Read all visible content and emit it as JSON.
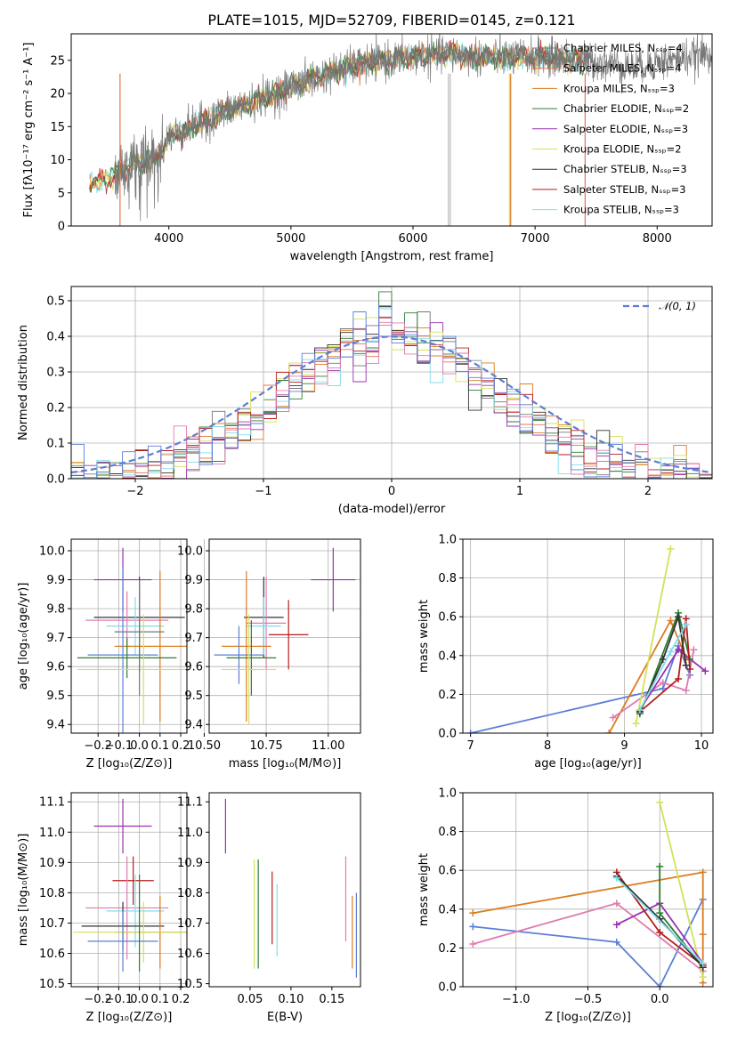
{
  "colors": {
    "chabrier_miles": "#777777",
    "salpeter_miles": "#e8744a",
    "kroupa_miles": "#dd7b1f",
    "chabrier_elodie": "#2e7d32",
    "salpeter_elodie": "#9b30b0",
    "kroupa_elodie": "#d4e157",
    "chabrier_stelib": "#333333",
    "salpeter_stelib": "#b71c1c",
    "kroupa_stelib": "#80deea",
    "blue": "#5b7fd6",
    "pink": "#e07bb0",
    "lime": "#cde84a",
    "gauss": "#5b7fd6"
  },
  "chart_data": [
    {
      "id": "spectrum",
      "type": "line",
      "title": "PLATE=1015, MJD=52709, FIBERID=0145, z=0.121",
      "xlabel": "wavelength [Angstrom, rest frame]",
      "ylabel": "Flux [fλ10⁻¹⁷ erg cm⁻² s⁻¹ A⁻¹]",
      "xlim": [
        3200,
        8450
      ],
      "ylim": [
        0,
        29
      ],
      "xticks": [
        4000,
        5000,
        6000,
        7000,
        8000
      ],
      "yticks": [
        0,
        5,
        10,
        15,
        20,
        25
      ],
      "grid": false,
      "legend_position": "top-right",
      "legend": [
        "Chabrier MILES, Nₛₛₚ=4",
        "Salpeter MILES, Nₛₛₚ=4",
        "Kroupa MILES, Nₛₛₚ=3",
        "Chabrier ELODIE, Nₛₛₚ=2",
        "Salpeter ELODIE, Nₛₛₚ=3",
        "Kroupa ELODIE, Nₛₛₚ=2",
        "Chabrier STELIB, Nₛₛₚ=3",
        "Salpeter STELIB, Nₛₛₚ=3",
        "Kroupa STELIB, Nₛₛₚ=3"
      ],
      "continuum": [
        [
          3350,
          6.5
        ],
        [
          3500,
          7
        ],
        [
          3700,
          9.5
        ],
        [
          3900,
          10
        ],
        [
          4000,
          13.5
        ],
        [
          4200,
          15
        ],
        [
          4500,
          17.5
        ],
        [
          4800,
          19.5
        ],
        [
          5000,
          21
        ],
        [
          5300,
          23
        ],
        [
          5600,
          24.5
        ],
        [
          6000,
          25.5
        ],
        [
          6300,
          26
        ],
        [
          6600,
          25.5
        ],
        [
          7000,
          25.5
        ],
        [
          7400,
          25
        ],
        [
          7800,
          24
        ],
        [
          8100,
          25
        ],
        [
          8450,
          26
        ]
      ]
    },
    {
      "id": "residuals",
      "type": "step",
      "xlabel": "(data-model)/error",
      "ylabel": "Normed distribution",
      "xlim": [
        -2.5,
        2.5
      ],
      "ylim": [
        0,
        0.54
      ],
      "xticks": [
        -2,
        -1,
        0,
        1,
        2
      ],
      "yticks": [
        0.0,
        0.1,
        0.2,
        0.3,
        0.4,
        0.5
      ],
      "grid": true,
      "legend_position": "top-right",
      "legend": [
        "𝒩(0, 1)"
      ],
      "bin_width": 0.1
    },
    {
      "id": "age_vs_Z",
      "type": "errorbar",
      "xlabel": "Z [log₁₀(Z/Z⊙)]",
      "ylabel": "age  [log₁₀(age/yr)]",
      "xlim": [
        -0.33,
        0.23
      ],
      "ylim": [
        9.37,
        10.04
      ],
      "xticks": [
        -0.2,
        -0.1,
        0.0,
        0.1,
        0.2
      ],
      "yticks": [
        9.4,
        9.5,
        9.6,
        9.7,
        9.8,
        9.9,
        10.0
      ],
      "grid": true,
      "points": [
        {
          "color": "salpeter_elodie",
          "x": -0.08,
          "xerr": 0.14,
          "y": 9.9,
          "yerr": 0.11
        },
        {
          "color": "chabrier_stelib",
          "x": 0.0,
          "xerr": 0.22,
          "y": 9.77,
          "yerr": 0.14
        },
        {
          "color": "pink",
          "x": -0.06,
          "xerr": 0.2,
          "y": 9.76,
          "yerr": 0.1
        },
        {
          "color": "kroupa_stelib",
          "x": -0.02,
          "xerr": 0.14,
          "y": 9.74,
          "yerr": 0.1
        },
        {
          "color": "kroupa_miles",
          "x": 0.1,
          "xerr": 0.22,
          "y": 9.67,
          "yerr": 0.26
        },
        {
          "color": "chabrier_miles",
          "x": 0.0,
          "xerr": 0.12,
          "y": 9.72,
          "yerr": 0.14
        },
        {
          "color": "blue",
          "x": -0.08,
          "xerr": 0.17,
          "y": 9.64,
          "yerr": 0.3
        },
        {
          "color": "chabrier_elodie",
          "x": -0.06,
          "xerr": 0.24,
          "y": 9.63,
          "yerr": 0.07
        },
        {
          "color": "kroupa_elodie",
          "x": 0.02,
          "xerr": 0.32,
          "y": 9.59,
          "yerr": 0.19
        },
        {
          "color": "chabrier_miles",
          "x": 0.0,
          "xerr": 0.0,
          "y": 9.7,
          "yerr": 0.2
        }
      ]
    },
    {
      "id": "age_vs_mass",
      "type": "errorbar",
      "xlabel": "mass [log₁₀(M/M⊙)]",
      "xlim": [
        10.52,
        11.13
      ],
      "ylim": [
        9.37,
        10.04
      ],
      "xticks": [
        10.5,
        10.75,
        11.0
      ],
      "yticks": [
        9.4,
        9.5,
        9.6,
        9.7,
        9.8,
        9.9,
        10.0
      ],
      "grid": true,
      "points": [
        {
          "color": "salpeter_elodie",
          "x": 11.02,
          "xerr": 0.09,
          "y": 9.9,
          "yerr": 0.11
        },
        {
          "color": "salpeter_stelib",
          "x": 10.84,
          "xerr": 0.08,
          "y": 9.71,
          "yerr": 0.12
        },
        {
          "color": "chabrier_stelib",
          "x": 10.74,
          "xerr": 0.08,
          "y": 9.77,
          "yerr": 0.14
        },
        {
          "color": "pink",
          "x": 10.75,
          "xerr": 0.08,
          "y": 9.75,
          "yerr": 0.16
        },
        {
          "color": "kroupa_stelib",
          "x": 10.74,
          "xerr": 0.07,
          "y": 9.74,
          "yerr": 0.1
        },
        {
          "color": "kroupa_miles",
          "x": 10.67,
          "xerr": 0.1,
          "y": 9.67,
          "yerr": 0.26
        },
        {
          "color": "blue",
          "x": 10.64,
          "xerr": 0.1,
          "y": 9.64,
          "yerr": 0.1
        },
        {
          "color": "chabrier_elodie",
          "x": 10.69,
          "xerr": 0.1,
          "y": 9.63,
          "yerr": 0.13
        },
        {
          "color": "kroupa_elodie",
          "x": 10.68,
          "xerr": 0.11,
          "y": 9.59,
          "yerr": 0.19
        }
      ]
    },
    {
      "id": "weight_vs_age",
      "type": "line",
      "xlabel": "age  [log₁₀(age/yr)]",
      "ylabel": "mass weight",
      "xlim": [
        6.9,
        10.15
      ],
      "ylim": [
        0,
        1
      ],
      "xticks": [
        7,
        8,
        9,
        10
      ],
      "yticks": [
        0.0,
        0.2,
        0.4,
        0.6,
        0.8,
        1.0
      ],
      "grid": true,
      "series": [
        {
          "color": "blue",
          "points": [
            [
              7.0,
              0.0
            ],
            [
              9.5,
              0.23
            ],
            [
              9.7,
              0.45
            ],
            [
              9.85,
              0.3
            ]
          ]
        },
        {
          "color": "kroupa_miles",
          "points": [
            [
              8.8,
              0.0
            ],
            [
              9.6,
              0.58
            ],
            [
              9.8,
              0.39
            ]
          ]
        },
        {
          "color": "pink",
          "points": [
            [
              8.85,
              0.08
            ],
            [
              9.5,
              0.26
            ],
            [
              9.8,
              0.22
            ],
            [
              9.9,
              0.43
            ]
          ]
        },
        {
          "color": "kroupa_elodie",
          "points": [
            [
              9.15,
              0.05
            ],
            [
              9.6,
              0.95
            ]
          ]
        },
        {
          "color": "salpeter_elodie",
          "points": [
            [
              9.2,
              0.12
            ],
            [
              9.7,
              0.43
            ],
            [
              10.05,
              0.32
            ]
          ]
        },
        {
          "color": "chabrier_elodie",
          "points": [
            [
              9.2,
              0.1
            ],
            [
              9.7,
              0.62
            ],
            [
              9.85,
              0.38
            ]
          ]
        },
        {
          "color": "salpeter_stelib",
          "points": [
            [
              9.2,
              0.11
            ],
            [
              9.7,
              0.28
            ],
            [
              9.8,
              0.59
            ],
            [
              9.85,
              0.33
            ]
          ]
        },
        {
          "color": "chabrier_stelib",
          "points": [
            [
              9.2,
              0.11
            ],
            [
              9.5,
              0.38
            ],
            [
              9.7,
              0.6
            ],
            [
              9.8,
              0.35
            ]
          ]
        },
        {
          "color": "kroupa_stelib",
          "points": [
            [
              9.2,
              0.12
            ],
            [
              9.6,
              0.42
            ],
            [
              9.8,
              0.56
            ]
          ]
        }
      ]
    },
    {
      "id": "mass_vs_Z",
      "type": "errorbar",
      "xlabel": "Z [log₁₀(Z/Z⊙)]",
      "ylabel": "mass [log₁₀(M/M⊙)]",
      "xlim": [
        -0.33,
        0.23
      ],
      "ylim": [
        10.49,
        11.13
      ],
      "xticks": [
        -0.2,
        -0.1,
        0.0,
        0.1,
        0.2
      ],
      "yticks": [
        10.5,
        10.6,
        10.7,
        10.8,
        10.9,
        11.0,
        11.1
      ],
      "grid": true,
      "points": [
        {
          "color": "salpeter_elodie",
          "x": -0.08,
          "xerr": 0.14,
          "y": 11.02,
          "yerr": 0.09
        },
        {
          "color": "salpeter_stelib",
          "x": -0.03,
          "xerr": 0.1,
          "y": 10.84,
          "yerr": 0.08
        },
        {
          "color": "pink",
          "x": -0.06,
          "xerr": 0.2,
          "y": 10.75,
          "yerr": 0.17
        },
        {
          "color": "kroupa_stelib",
          "x": -0.02,
          "xerr": 0.14,
          "y": 10.74,
          "yerr": 0.12
        },
        {
          "color": "chabrier_stelib",
          "x": -0.08,
          "xerr": 0.2,
          "y": 10.69,
          "yerr": 0.08
        },
        {
          "color": "kroupa_miles",
          "x": 0.1,
          "xerr": 0.22,
          "y": 10.67,
          "yerr": 0.12
        },
        {
          "color": "kroupa_elodie",
          "x": 0.02,
          "xerr": 0.34,
          "y": 10.67,
          "yerr": 0.1
        },
        {
          "color": "blue",
          "x": -0.08,
          "xerr": 0.17,
          "y": 10.64,
          "yerr": 0.1
        },
        {
          "color": "chabrier_elodie",
          "x": 0.0,
          "xerr": 0.0,
          "y": 10.7,
          "yerr": 0.16
        }
      ]
    },
    {
      "id": "mass_vs_ebv",
      "type": "errorbar",
      "xlabel": "E(B-V)",
      "xlim": [
        0.0,
        0.185
      ],
      "ylim": [
        10.49,
        11.13
      ],
      "xticks": [
        0.05,
        0.1,
        0.15
      ],
      "yticks": [
        10.5,
        10.6,
        10.7,
        10.8,
        10.9,
        11.0,
        11.1
      ],
      "grid": false,
      "points": [
        {
          "color": "salpeter_elodie",
          "x": 0.02,
          "y": 11.02,
          "yerr": 0.09
        },
        {
          "color": "kroupa_elodie",
          "x": 0.055,
          "y": 10.73,
          "yerr": 0.18
        },
        {
          "color": "chabrier_elodie",
          "x": 0.06,
          "y": 10.73,
          "yerr": 0.18
        },
        {
          "color": "salpeter_stelib",
          "x": 0.077,
          "y": 10.75,
          "yerr": 0.12
        },
        {
          "color": "kroupa_stelib",
          "x": 0.083,
          "y": 10.71,
          "yerr": 0.12
        },
        {
          "color": "pink",
          "x": 0.167,
          "y": 10.78,
          "yerr": 0.14
        },
        {
          "color": "kroupa_miles",
          "x": 0.175,
          "y": 10.67,
          "yerr": 0.12
        },
        {
          "color": "blue",
          "x": 0.18,
          "y": 10.66,
          "yerr": 0.14
        }
      ]
    },
    {
      "id": "weight_vs_Z",
      "type": "line",
      "xlabel": "Z [log₁₀(Z/Z⊙)]",
      "ylabel": "mass weight",
      "xlim": [
        -1.37,
        0.37
      ],
      "ylim": [
        0,
        1
      ],
      "xticks": [
        -1.0,
        -0.5,
        0.0
      ],
      "yticks": [
        0.0,
        0.2,
        0.4,
        0.6,
        0.8,
        1.0
      ],
      "grid": true,
      "series": [
        {
          "color": "blue",
          "points": [
            [
              -1.3,
              0.31
            ],
            [
              -0.3,
              0.23
            ],
            [
              0.0,
              0.0
            ],
            [
              0.3,
              0.45
            ]
          ]
        },
        {
          "color": "kroupa_miles",
          "points": [
            [
              -1.3,
              0.38
            ],
            [
              0.3,
              0.59
            ],
            [
              0.3,
              0.27
            ],
            [
              0.3,
              0.02
            ]
          ]
        },
        {
          "color": "pink",
          "points": [
            [
              -1.3,
              0.22
            ],
            [
              -0.3,
              0.43
            ],
            [
              0.3,
              0.08
            ]
          ]
        },
        {
          "color": "kroupa_elodie",
          "points": [
            [
              0.0,
              0.95
            ],
            [
              0.3,
              0.05
            ]
          ]
        },
        {
          "color": "salpeter_elodie",
          "points": [
            [
              -0.3,
              0.32
            ],
            [
              0.0,
              0.43
            ],
            [
              0.3,
              0.12
            ]
          ]
        },
        {
          "color": "chabrier_elodie",
          "points": [
            [
              0.0,
              0.62
            ],
            [
              0.0,
              0.38
            ],
            [
              0.3,
              0.1
            ]
          ]
        },
        {
          "color": "salpeter_stelib",
          "points": [
            [
              -0.3,
              0.59
            ],
            [
              0.0,
              0.28
            ],
            [
              0.3,
              0.11
            ]
          ]
        },
        {
          "color": "chabrier_stelib",
          "points": [
            [
              -0.3,
              0.57
            ],
            [
              0.0,
              0.35
            ],
            [
              0.3,
              0.1
            ]
          ]
        },
        {
          "color": "kroupa_stelib",
          "points": [
            [
              -0.3,
              0.56
            ],
            [
              0.3,
              0.12
            ]
          ]
        }
      ]
    }
  ]
}
